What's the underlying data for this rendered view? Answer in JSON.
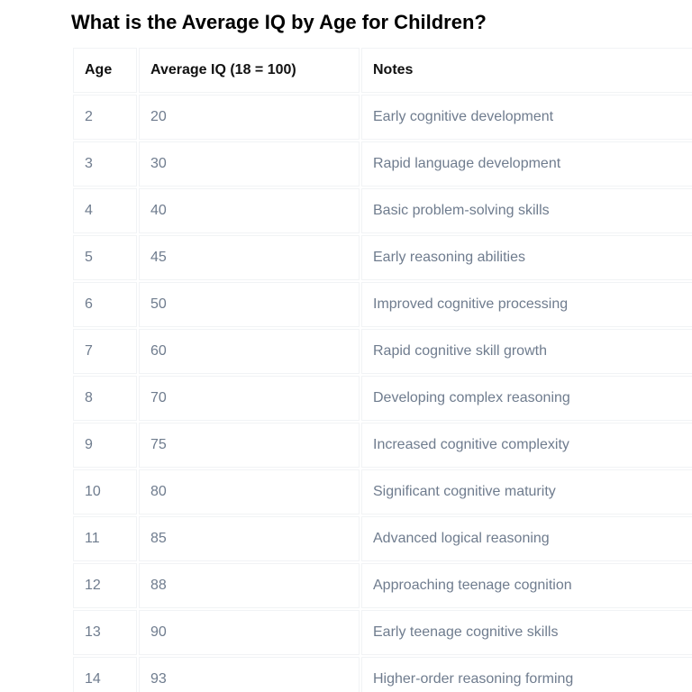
{
  "page": {
    "title": "What is the Average IQ by Age for Children?"
  },
  "table": {
    "headers": [
      "Age",
      "Average IQ (18 = 100)",
      "Notes"
    ],
    "rows": [
      [
        "2",
        "20",
        "Early cognitive development"
      ],
      [
        "3",
        "30",
        "Rapid language development"
      ],
      [
        "4",
        "40",
        "Basic problem-solving skills"
      ],
      [
        "5",
        "45",
        "Early reasoning abilities"
      ],
      [
        "6",
        "50",
        "Improved cognitive processing"
      ],
      [
        "7",
        "60",
        "Rapid cognitive skill growth"
      ],
      [
        "8",
        "70",
        "Developing complex reasoning"
      ],
      [
        "9",
        "75",
        "Increased cognitive complexity"
      ],
      [
        "10",
        "80",
        "Significant cognitive maturity"
      ],
      [
        "11",
        "85",
        "Advanced logical reasoning"
      ],
      [
        "12",
        "88",
        "Approaching teenage cognition"
      ],
      [
        "13",
        "90",
        "Early teenage cognitive skills"
      ],
      [
        "14",
        "93",
        "Higher-order reasoning forming"
      ]
    ]
  }
}
